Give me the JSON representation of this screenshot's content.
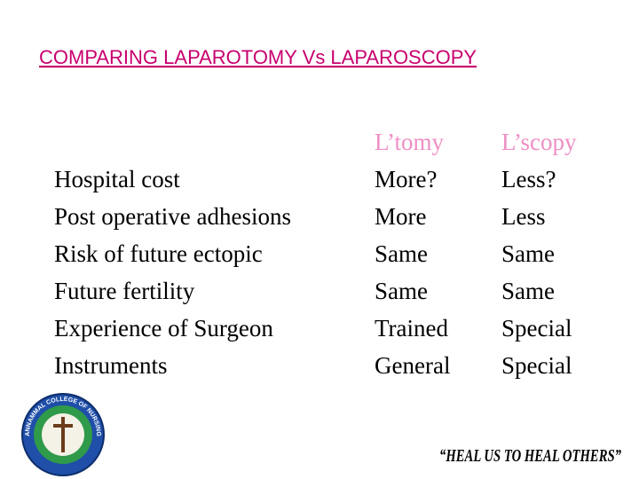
{
  "header": {
    "title": "COMPARING LAPAROTOMY Vs LAPAROSCOPY"
  },
  "table": {
    "columns": [
      "L’tomy",
      "L’scopy"
    ],
    "rows": [
      [
        "Hospital cost",
        "More?",
        "Less?"
      ],
      [
        "Post operative adhesions",
        "More",
        "Less"
      ],
      [
        "Risk of future ectopic",
        "Same",
        "Same"
      ],
      [
        "Future fertility",
        "Same",
        "Same"
      ],
      [
        "Experience of Surgeon",
        "Trained",
        "Special"
      ],
      [
        "Instruments",
        "General",
        "Special"
      ]
    ]
  },
  "footer": {
    "logo_text": "ANNAMMAL COLLEGE OF NURSING",
    "motto": "“HEAL US TO HEAL OTHERS”"
  }
}
